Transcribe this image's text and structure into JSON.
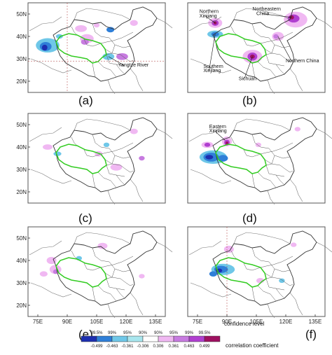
{
  "panels": [
    {
      "id": "a",
      "label": "(a)",
      "yticks": [
        "50N",
        "40N",
        "30N",
        "20N"
      ],
      "xticks": [],
      "annotations": [
        {
          "text": "Yangtze River"
        }
      ]
    },
    {
      "id": "b",
      "label": "(b)",
      "yticks": [],
      "xticks": [],
      "annotations": [
        {
          "text": "Northern"
        },
        {
          "text": "Xinjiang"
        },
        {
          "text": "Northeastern"
        },
        {
          "text": "China"
        },
        {
          "text": "Southern"
        },
        {
          "text": "Xinjiang"
        },
        {
          "text": "Sichuan"
        },
        {
          "text": "Northern China"
        }
      ]
    },
    {
      "id": "c",
      "label": "(c)",
      "yticks": [
        "50N",
        "40N",
        "30N",
        "20N"
      ],
      "xticks": [],
      "annotations": []
    },
    {
      "id": "d",
      "label": "(d)",
      "yticks": [],
      "xticks": [],
      "annotations": [
        {
          "text": "Eastern"
        },
        {
          "text": "Xinjiang"
        }
      ]
    },
    {
      "id": "e",
      "label": "(e)",
      "yticks": [
        "50N",
        "40N",
        "30N",
        "20N"
      ],
      "xticks": [
        "75E",
        "90E",
        "105E",
        "120E",
        "135E"
      ],
      "annotations": []
    },
    {
      "id": "f",
      "label": "(f)",
      "yticks": [],
      "xticks": [
        "75E",
        "90E",
        "105E",
        "120E",
        "135E"
      ],
      "annotations": []
    }
  ],
  "legend": {
    "confidence_title": "confidence level",
    "correlation_title": "correlation coefficient",
    "confidence_levels": [
      "99.5%",
      "99%",
      "95%",
      "90%",
      "90%",
      "95%",
      "99%",
      "99.5%"
    ],
    "values": [
      "-0.499",
      "-0.463",
      "-0.361",
      "-0.306",
      "0.306",
      "0.361",
      "0.463",
      "0.499"
    ],
    "colors": [
      "#1d2fb0",
      "#2f7fd8",
      "#6fc7e8",
      "#a8e6ee",
      "#ffffff",
      "#f0b8f2",
      "#c77be0",
      "#b03fd0",
      "#9e1060"
    ]
  },
  "colors": {
    "plateau": "#33cc22",
    "border": "#333333",
    "blue_dark": "#1d2fb0",
    "blue": "#2f7fd8",
    "cyan": "#6fc7e8",
    "pink": "#f0b8f2",
    "violet": "#c77be0",
    "magenta": "#b03fd0",
    "dark_red": "#9e1060"
  }
}
